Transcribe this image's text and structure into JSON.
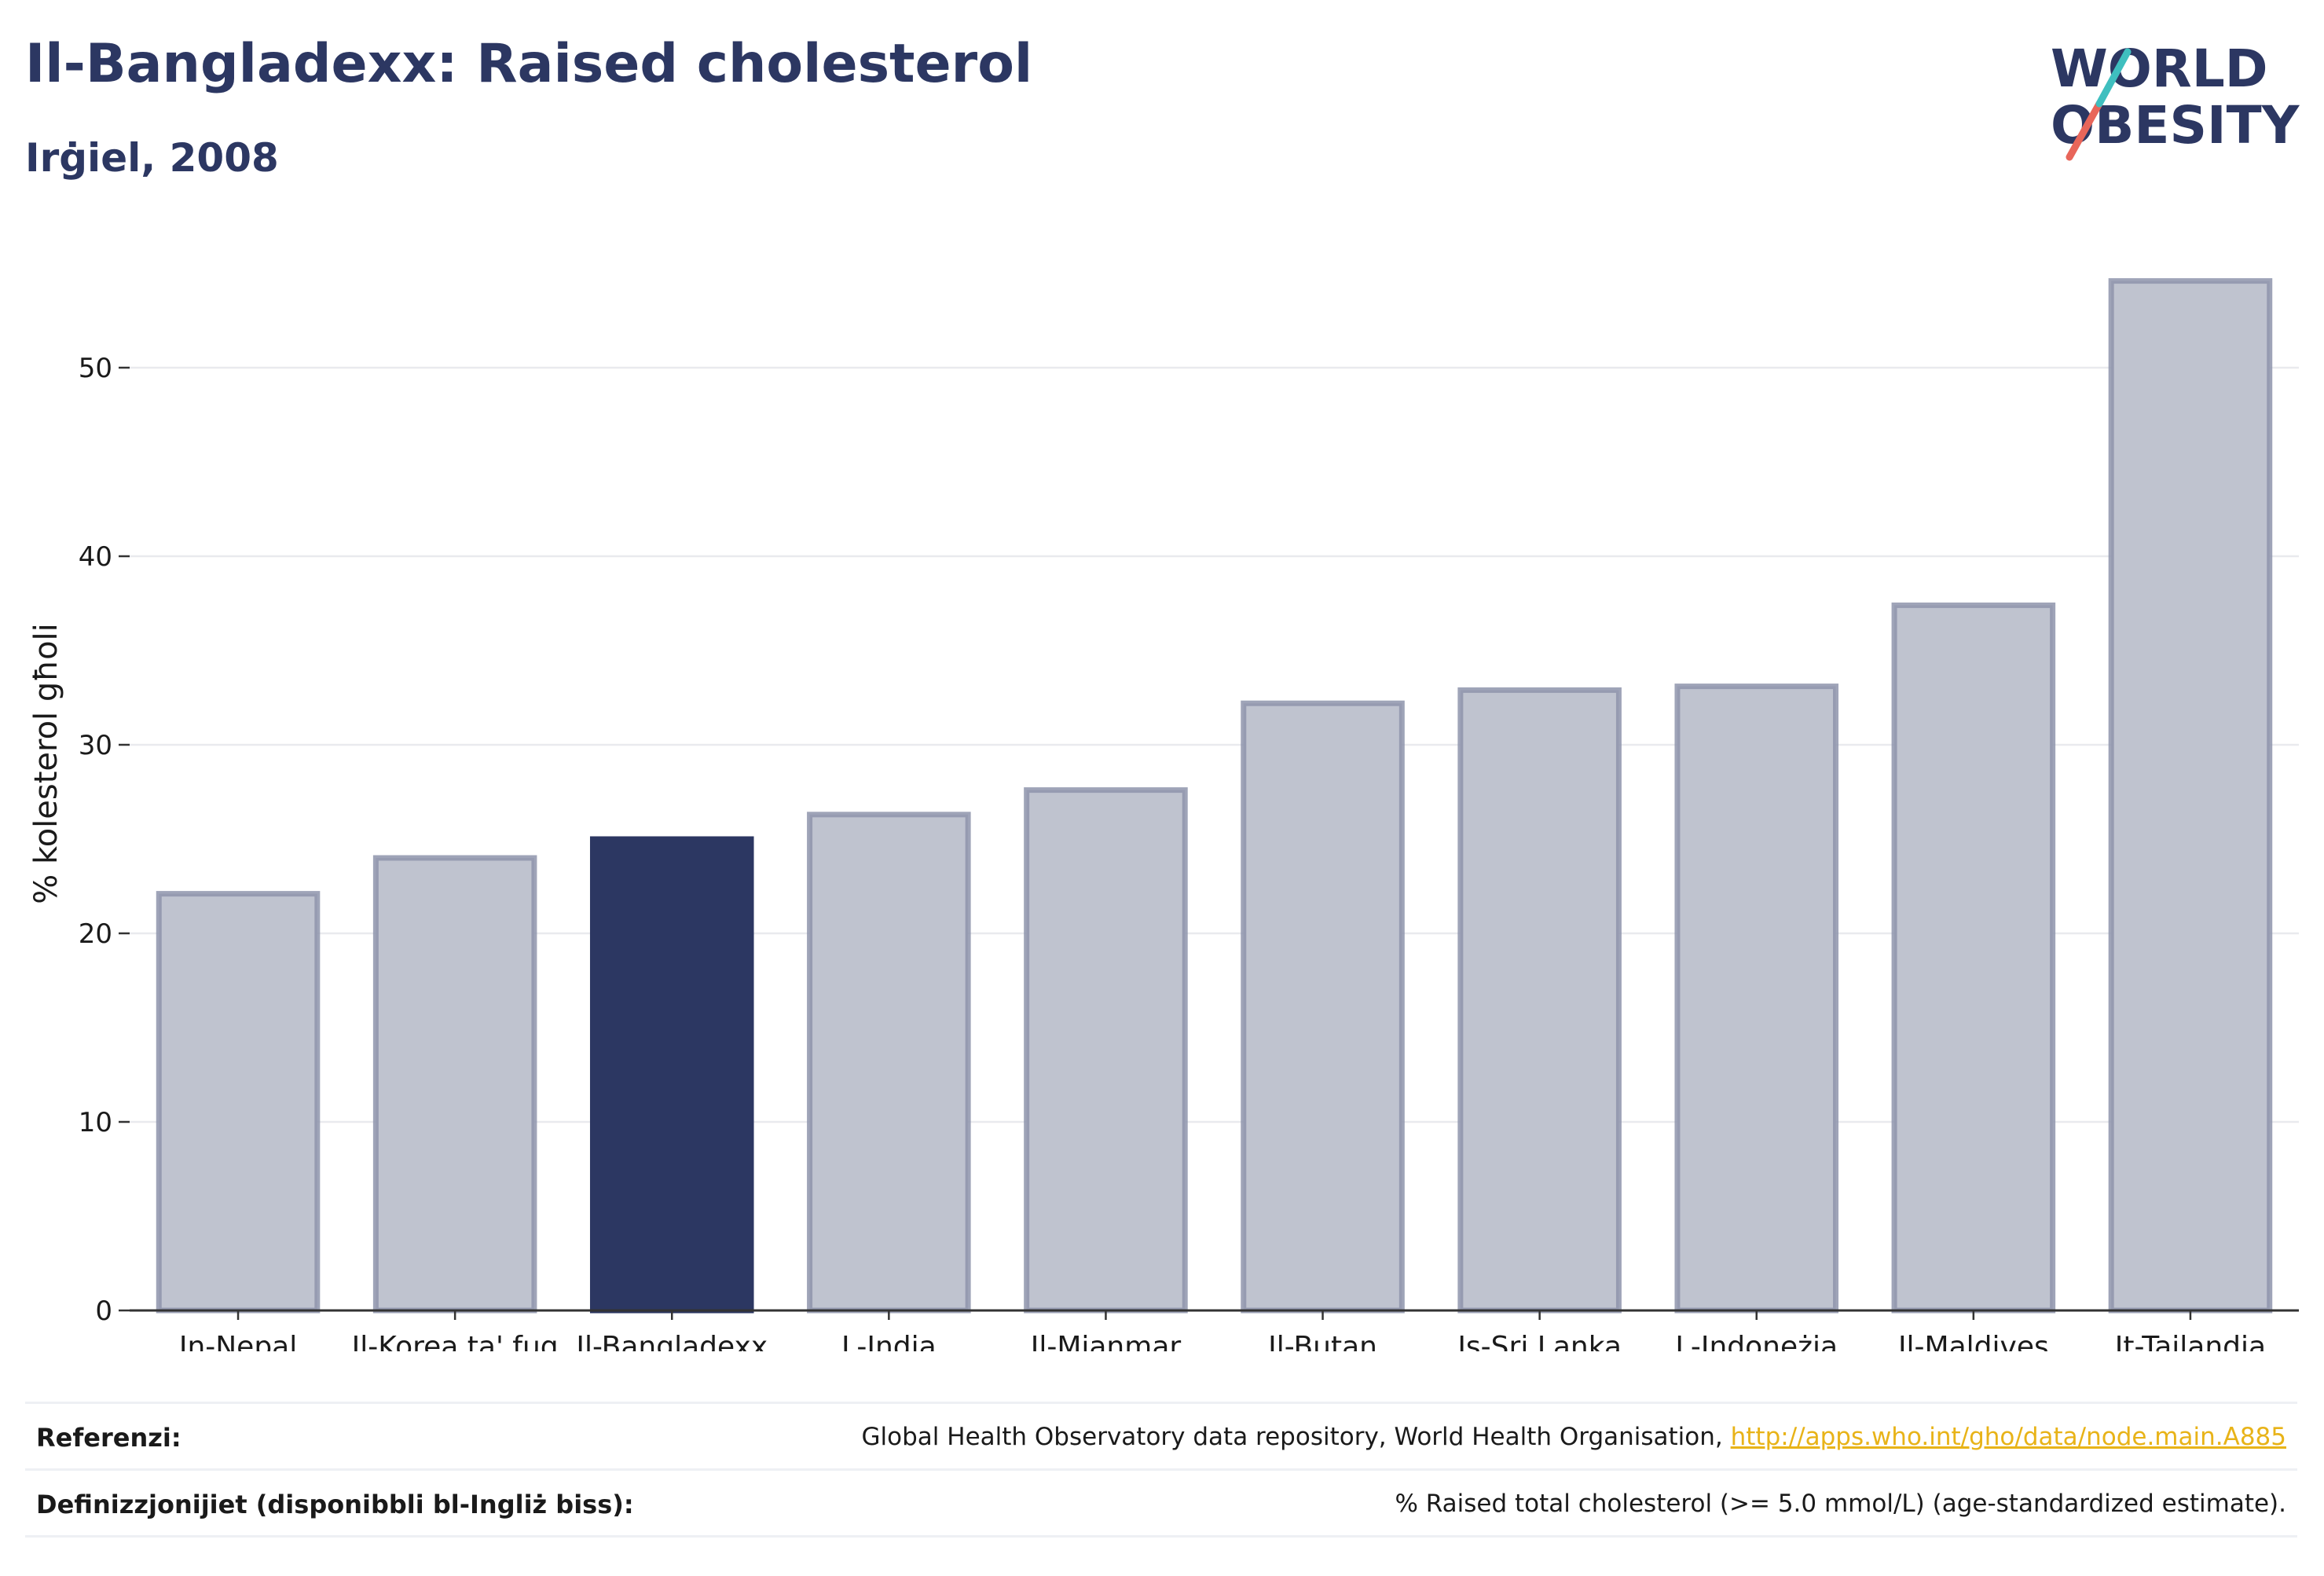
{
  "header": {
    "title": "Il-Bangladexx: Raised cholesterol",
    "subtitle": "Irġiel, 2008"
  },
  "logo": {
    "line1": "WORLD",
    "line2": "OBESITY",
    "colors": {
      "text": "#2c3762",
      "slash_red": "#e8665a",
      "slash_teal": "#3fbfbf"
    }
  },
  "chart_data": {
    "type": "bar",
    "categories": [
      "In-Nepal",
      "Il-Korea ta' fuq",
      "Il-Bangladexx",
      "L-Indja",
      "Il-Mjanmar",
      "Il-Butan",
      "Is-Sri Lanka",
      "L-Indoneżja",
      "Il-Maldives",
      "It-Tajlandja"
    ],
    "values": [
      22.1,
      24.0,
      25.0,
      26.3,
      27.6,
      32.2,
      32.9,
      33.1,
      37.4,
      54.6
    ],
    "highlight_index": 2,
    "ylabel": "% kolesterol għoli",
    "ylim": [
      0,
      57
    ],
    "yticks": [
      0,
      10,
      20,
      30,
      40,
      50
    ],
    "grid": true,
    "colors": {
      "highlight": "#2c3762",
      "bar_fill": "#bfc3cf",
      "bar_stroke": "#8e94ab",
      "grid": "#e9eaee"
    }
  },
  "footer": {
    "references_label": "Referenzi:",
    "references_text": "Global Health Observatory data repository, World Health Organisation, ",
    "references_link": "http://apps.who.int/gho/data/node.main.A885",
    "definitions_label": "Definizzjonijiet (disponibbli bl-Ingliż biss):",
    "definitions_text": "% Raised total cholesterol (>= 5.0 mmol/L) (age-standardized estimate)."
  }
}
